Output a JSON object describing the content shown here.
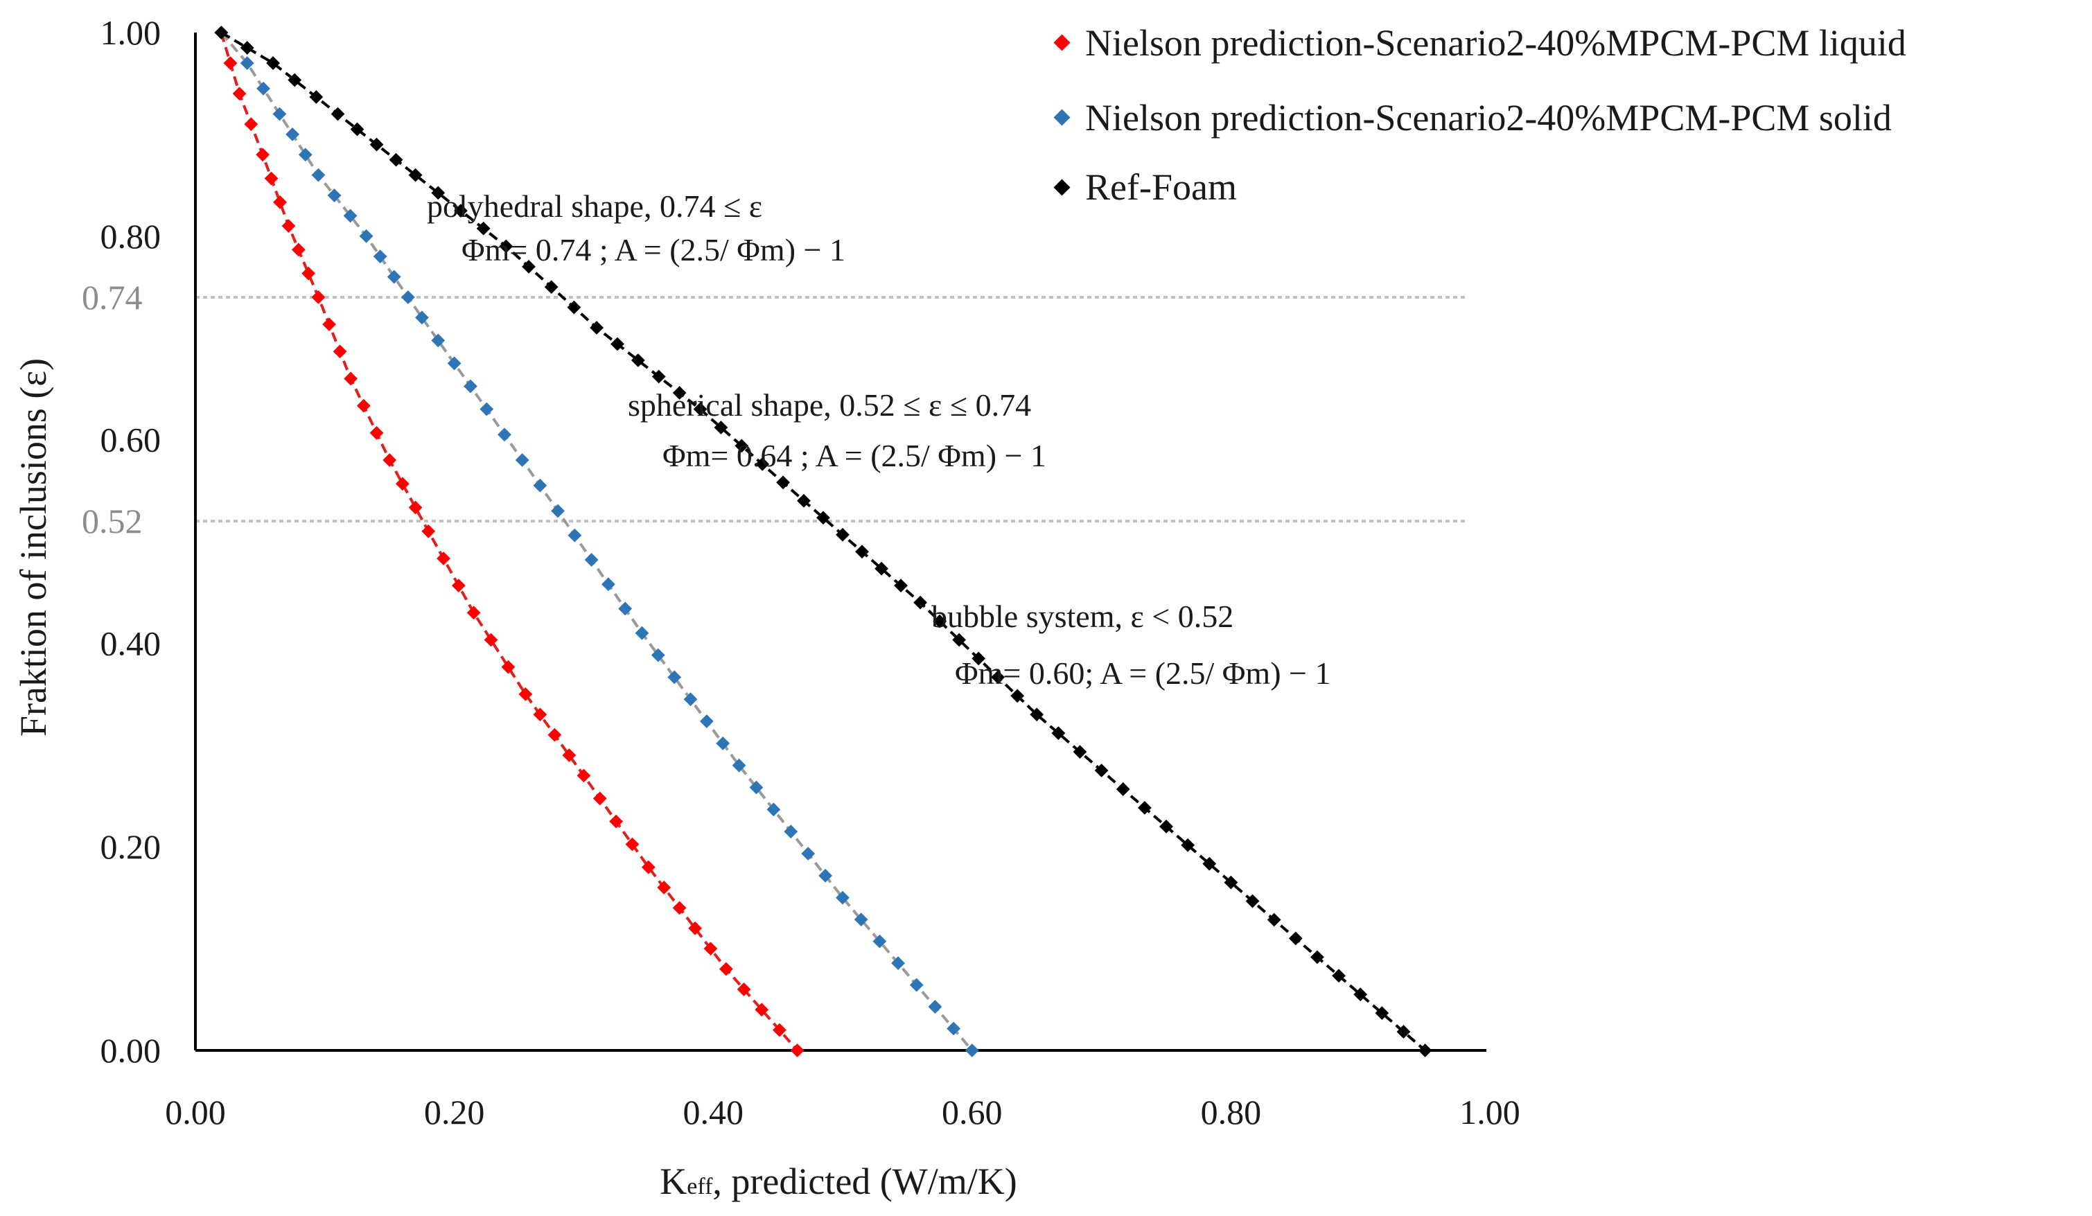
{
  "chart_data": {
    "type": "scatter",
    "xlabel": "K",
    "xlabel_sub": "eff",
    "xlabel_rest": ", predicted (W/m/K)",
    "ylabel": "Fraktion of inclusions (ε)",
    "xlim": [
      0,
      1
    ],
    "ylim": [
      0,
      1
    ],
    "x_ticks": [
      "0.00",
      "0.20",
      "0.40",
      "0.60",
      "0.80",
      "1.00"
    ],
    "y_ticks": [
      "0.00",
      "0.20",
      "0.40",
      "0.60",
      "0.80",
      "1.00"
    ],
    "reference_lines": [
      {
        "label": "0.74",
        "y": 0.74,
        "color": "#bfbfbf"
      },
      {
        "label": "0.52",
        "y": 0.52,
        "color": "#bfbfbf"
      }
    ],
    "series": [
      {
        "name": "Nielson prediction-Scenario2-40%MPCM-PCM liquid",
        "color": "#ff0000",
        "line_color": "#e02020",
        "x": [
          0.465,
          0.41,
          0.35,
          0.3,
          0.255,
          0.215,
          0.18,
          0.15,
          0.12,
          0.095,
          0.072,
          0.052,
          0.034,
          0.02
        ],
        "y": [
          0.0,
          0.08,
          0.18,
          0.27,
          0.35,
          0.43,
          0.51,
          0.58,
          0.66,
          0.74,
          0.81,
          0.88,
          0.94,
          1.0
        ]
      },
      {
        "name": "Nielson prediction-Scenario2-40%MPCM-PCM solid",
        "color": "#2e75b6",
        "line_color": "#9a9a9a",
        "x": [
          0.6,
          0.5,
          0.42,
          0.345,
          0.28,
          0.225,
          0.175,
          0.132,
          0.095,
          0.065,
          0.04,
          0.02
        ],
        "y": [
          0.0,
          0.15,
          0.28,
          0.41,
          0.53,
          0.63,
          0.72,
          0.8,
          0.86,
          0.92,
          0.97,
          1.0
        ]
      },
      {
        "name": "Ref-Foam",
        "color": "#000000",
        "line_color": "#000000",
        "x": [
          0.95,
          0.85,
          0.75,
          0.65,
          0.56,
          0.47,
          0.39,
          0.31,
          0.24,
          0.17,
          0.11,
          0.06,
          0.02
        ],
        "y": [
          0.0,
          0.11,
          0.22,
          0.33,
          0.44,
          0.54,
          0.63,
          0.71,
          0.79,
          0.86,
          0.92,
          0.97,
          1.0
        ]
      }
    ],
    "annotations": [
      {
        "line1": "polyhedral shape, 0.74 ≤ ε",
        "line2": "Φm= 0.74 ; A = (2.5/ Φm) − 1"
      },
      {
        "line1": "spherical shape, 0.52 ≤ ε ≤  0.74",
        "line2": "Φm= 0.64 ; A = (2.5/ Φm) − 1"
      },
      {
        "line1": "bubble system,   ε <  0.52",
        "line2": "Φm= 0.60;  A = (2.5/ Φm) − 1"
      }
    ]
  }
}
